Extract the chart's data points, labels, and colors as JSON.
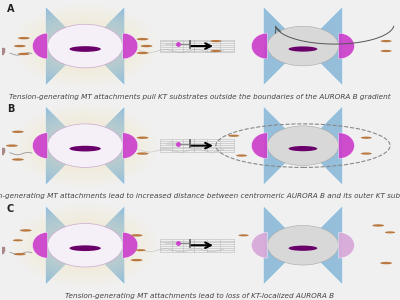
{
  "figure_bg": "#f0f0f0",
  "panel_bg": "#ffffff",
  "panel_border": "#cccccc",
  "panel_labels": [
    "A",
    "B",
    "C"
  ],
  "panel_captions": [
    "Tension-generating MT attachments pull KT substrates outside the boundaries of the AURORA B gradient",
    "Tension-generating MT attachments lead to increased distance between centromeric AURORA B and its outer KT substrates",
    "Tension-generating MT attachments lead to loss of KT-localized AURORA B"
  ],
  "caption_fontsize": 5.2,
  "label_fontsize": 7,
  "panel_label_color": "#222222",
  "mt_color": "#88b8d8",
  "aurora_b_color": "#9900aa",
  "kinetochore_magenta": "#cc44cc",
  "dot_color": "#b87840",
  "arrow_color": "#111111",
  "text_color": "#444444",
  "centromere_glow": "#f5e8c0",
  "centromere_body": "#f0e8f5",
  "gray_body": "#d8d8d8"
}
